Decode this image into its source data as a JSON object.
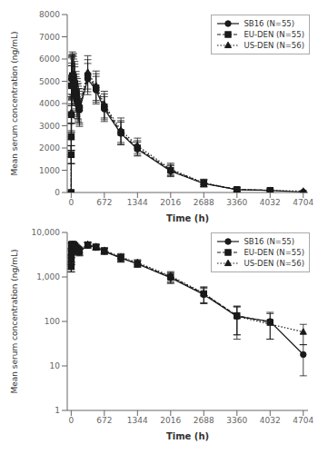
{
  "chart_data": [
    {
      "type": "line",
      "xlabel": "Time (h)",
      "ylabel": "Mean serum concentration (ng/mL)",
      "x": [
        0,
        1,
        2,
        4,
        8,
        12,
        24,
        48,
        72,
        96,
        120,
        144,
        168,
        336,
        504,
        672,
        1008,
        1344,
        2016,
        2688,
        3360,
        4032,
        4704
      ],
      "series": [
        {
          "name": "SB16 (N=55)",
          "color": "#1a1a1a",
          "marker": "circle",
          "line_style": "solid",
          "values": [
            0,
            1700,
            2500,
            3500,
            4800,
            5100,
            5200,
            5100,
            4800,
            4400,
            4100,
            3900,
            3700,
            5100,
            4600,
            3750,
            2650,
            1950,
            960,
            400,
            130,
            100,
            18
          ],
          "errors": [
            0,
            400,
            600,
            800,
            900,
            950,
            950,
            900,
            850,
            800,
            780,
            760,
            730,
            700,
            620,
            560,
            510,
            310,
            250,
            150,
            80,
            60,
            12
          ]
        },
        {
          "name": "EU-DEN (N=55)",
          "color": "#1a1a1a",
          "marker": "square",
          "line_style": "dashed",
          "values": [
            0,
            1700,
            2500,
            3500,
            4800,
            5150,
            5250,
            5200,
            4900,
            4500,
            4200,
            4000,
            3800,
            5250,
            4700,
            3850,
            2700,
            2000,
            1000,
            420,
            135,
            95,
            null
          ],
          "errors": [
            0,
            400,
            600,
            800,
            900,
            960,
            960,
            920,
            870,
            820,
            800,
            780,
            750,
            720,
            640,
            580,
            530,
            330,
            255,
            160,
            85,
            55,
            null
          ]
        },
        {
          "name": "US-DEN (N=56)",
          "color": "#1a1a1a",
          "marker": "triangle",
          "line_style": "dotted",
          "values": [
            0,
            1700,
            2500,
            3600,
            4900,
            5200,
            5350,
            5300,
            5000,
            4600,
            4300,
            4100,
            3900,
            5400,
            4800,
            3950,
            2800,
            2100,
            1050,
            430,
            130,
            null,
            58
          ],
          "errors": [
            0,
            410,
            620,
            820,
            920,
            970,
            970,
            940,
            890,
            840,
            820,
            800,
            770,
            750,
            660,
            600,
            550,
            345,
            265,
            170,
            90,
            null,
            28
          ]
        }
      ],
      "xlim": [
        -80,
        4800
      ],
      "xticks": [
        0,
        672,
        1344,
        2016,
        2688,
        3360,
        4032,
        4704
      ],
      "ylim": [
        0,
        8000
      ],
      "yticks": [
        0,
        1000,
        2000,
        3000,
        4000,
        5000,
        6000,
        7000,
        8000
      ],
      "grid": false,
      "legend": "upper right"
    },
    {
      "type": "line",
      "xlabel": "Time (h)",
      "ylabel": "Mean serum concentration (ng/mL)",
      "log": "y",
      "x": [
        0,
        1,
        2,
        4,
        8,
        12,
        24,
        48,
        72,
        96,
        120,
        144,
        168,
        336,
        504,
        672,
        1008,
        1344,
        2016,
        2688,
        3360,
        4032,
        4704
      ],
      "series": [
        {
          "name": "SB16 (N=55)",
          "color": "#1a1a1a",
          "marker": "circle",
          "line_style": "solid",
          "values": [
            null,
            1700,
            2500,
            3500,
            4800,
            5100,
            5200,
            5100,
            4800,
            4400,
            4100,
            3900,
            3700,
            5100,
            4600,
            3750,
            2650,
            1950,
            960,
            400,
            130,
            100,
            18
          ],
          "errors": [
            null,
            400,
            600,
            800,
            900,
            950,
            950,
            900,
            850,
            800,
            780,
            760,
            730,
            700,
            620,
            560,
            510,
            310,
            250,
            150,
            80,
            60,
            12
          ]
        },
        {
          "name": "EU-DEN (N=55)",
          "color": "#1a1a1a",
          "marker": "square",
          "line_style": "dashed",
          "values": [
            null,
            1700,
            2500,
            3500,
            4800,
            5150,
            5250,
            5200,
            4900,
            4500,
            4200,
            4000,
            3800,
            5250,
            4700,
            3850,
            2700,
            2000,
            1000,
            420,
            135,
            95,
            null
          ],
          "errors": [
            null,
            400,
            600,
            800,
            900,
            960,
            960,
            920,
            870,
            820,
            800,
            780,
            750,
            720,
            640,
            580,
            530,
            330,
            255,
            160,
            85,
            55,
            null
          ]
        },
        {
          "name": "US-DEN (N=56)",
          "color": "#1a1a1a",
          "marker": "triangle",
          "line_style": "dotted",
          "values": [
            null,
            1700,
            2500,
            3600,
            4900,
            5200,
            5350,
            5300,
            5000,
            4600,
            4300,
            4100,
            3900,
            5400,
            4800,
            3950,
            2800,
            2100,
            1050,
            430,
            130,
            null,
            58
          ],
          "errors": [
            null,
            410,
            620,
            820,
            920,
            970,
            970,
            940,
            890,
            840,
            820,
            800,
            770,
            750,
            660,
            600,
            550,
            345,
            265,
            170,
            90,
            null,
            28
          ]
        }
      ],
      "xlim": [
        -80,
        4800
      ],
      "xticks": [
        0,
        672,
        1344,
        2016,
        2688,
        3360,
        4032,
        4704
      ],
      "ylim": [
        1,
        10000
      ],
      "yticks": [
        1,
        10,
        100,
        {
          "value": 1000,
          "label": "1,000"
        },
        {
          "value": 10000,
          "label": "10,000"
        }
      ],
      "grid": false,
      "legend": "upper right"
    }
  ]
}
